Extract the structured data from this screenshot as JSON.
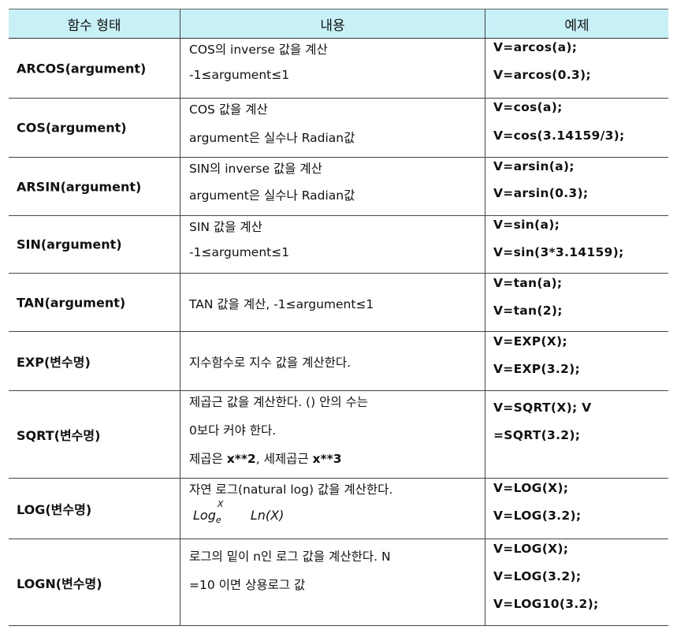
{
  "headers": {
    "col1": "함수 형태",
    "col2": "내용",
    "col3": "예제"
  },
  "rows": [
    {
      "name": "ARCOS(argument)",
      "desc": [
        "COS의 inverse  값을  계산",
        "-1≤argument≤1"
      ],
      "examples": [
        "V=arcos(a);",
        "V=arcos(0.3);"
      ]
    },
    {
      "name": "COS(argument)",
      "desc": [
        "COS  값을 계산",
        "argument은 실수나  Radian값"
      ],
      "examples": [
        "V=cos(a);",
        "V=cos(3.14159/3);"
      ]
    },
    {
      "name": "ARSIN(argument)",
      "desc": [
        "SIN의 inverse  값을  계산",
        "argument은 실수나  Radian값"
      ],
      "examples": [
        "V=arsin(a);",
        "V=arsin(0.3);"
      ]
    },
    {
      "name": "SIN(argument)",
      "desc": [
        "SIN  값을 계산",
        "-1≤argument≤1"
      ],
      "examples": [
        "V=sin(a);",
        "V=sin(3*3.14159);"
      ]
    },
    {
      "name": "TAN(argument)",
      "desc": [
        "TAN  값을 계산,  -1≤argument≤1"
      ],
      "examples": [
        "V=tan(a);",
        "V=tan(2);"
      ]
    },
    {
      "name": "EXP(변수명)",
      "desc": [
        "지수함수로 지수 값을   계산한다."
      ],
      "examples": [
        "V=EXP(X);",
        "V=EXP(3.2);"
      ]
    },
    {
      "name": "SQRT(변수명)",
      "desc": [
        "제곱근 값을 계산한다. () 안의  수는",
        "0보다 커야  한다.",
        "제곱은 ",
        "x**2",
        ",  세제곱근  ",
        "x**3"
      ],
      "examples": [
        "V=SQRT(X);  V",
        "=SQRT(3.2);"
      ]
    },
    {
      "name": "LOG(변수명)",
      "desc": [
        "자연  로그(natural log)  값을 계산한다.",
        "Log",
        "X",
        "e",
        "Ln(X)"
      ],
      "examples": [
        "V=LOG(X);",
        "V=LOG(3.2);"
      ]
    },
    {
      "name": "LOGN(변수명)",
      "desc": [
        "로그의 밑이 n인 로그 값을 계산한다.  N",
        "=10  이면 상용로그  값"
      ],
      "examples": [
        "V=LOG(X);",
        "V=LOG(3.2);",
        "V=LOG10(3.2);"
      ]
    }
  ]
}
